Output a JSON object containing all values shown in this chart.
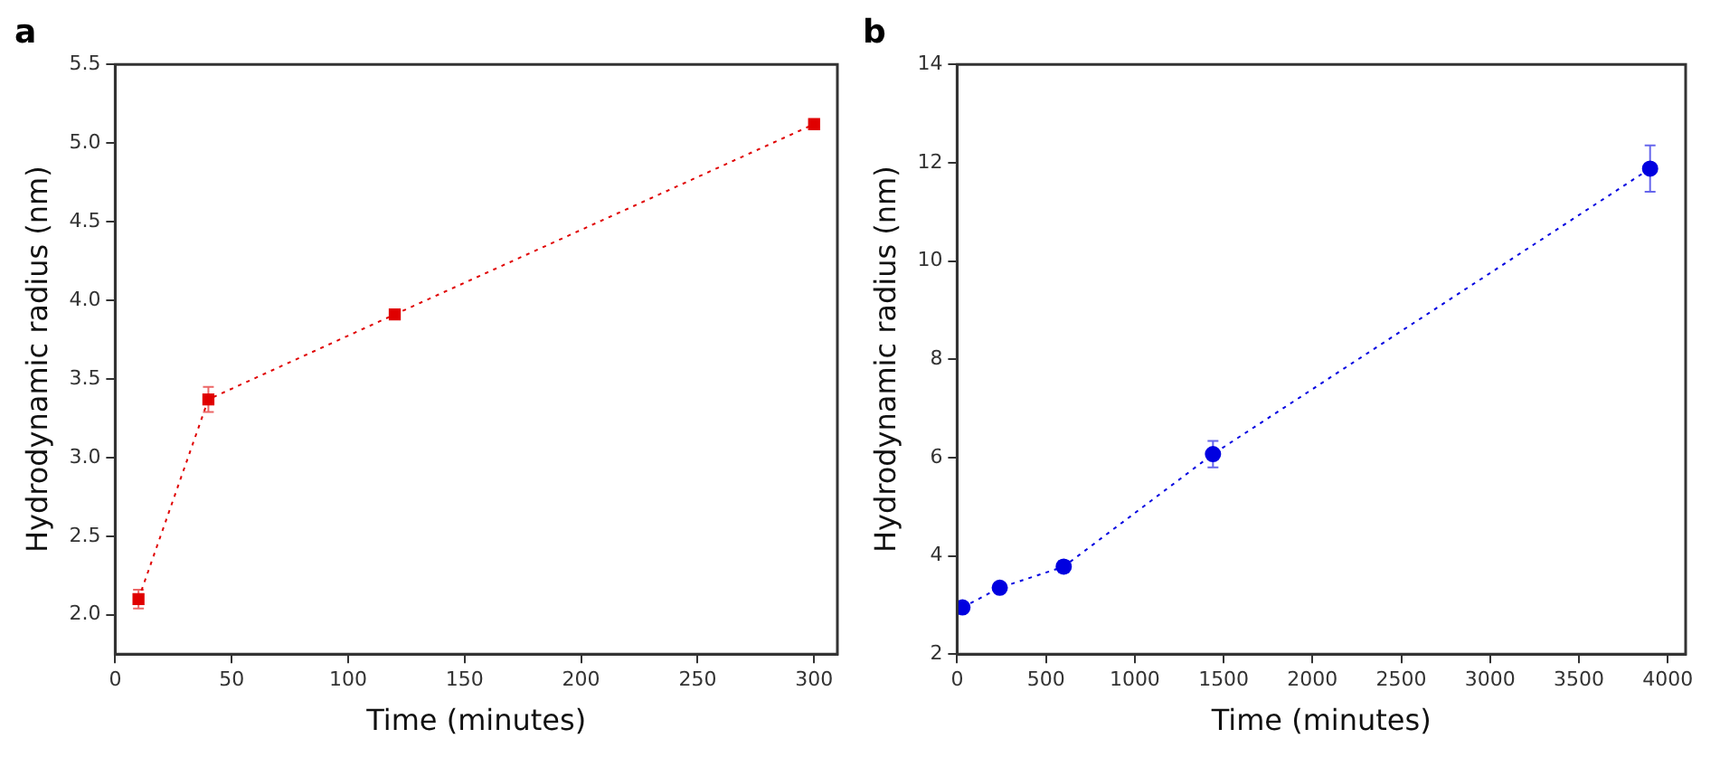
{
  "chart_data": [
    {
      "type": "line",
      "title": "a",
      "xlabel": "Time (minutes)",
      "ylabel": "Hydrodynamic radius (nm)",
      "x": [
        10,
        40,
        120,
        300
      ],
      "series": [
        {
          "color": "#e00000",
          "values": [
            2.1,
            3.37,
            3.91,
            5.12
          ],
          "errors": [
            0.06,
            0.08,
            0.02,
            0.02
          ]
        }
      ],
      "xlim": [
        0,
        310
      ],
      "xticks": [
        0,
        50,
        100,
        150,
        200,
        250,
        300
      ],
      "ylim": [
        1.75,
        5.5
      ],
      "yticks": [
        {
          "value": 2,
          "label": "2.0"
        },
        2.5,
        {
          "value": 3,
          "label": "3.0"
        },
        3.5,
        {
          "value": 4,
          "label": "4.0"
        },
        4.5,
        {
          "value": 5,
          "label": "5.0"
        },
        5.5
      ],
      "grid": false,
      "legend": false,
      "marker": "square",
      "line_style": "dotted"
    },
    {
      "type": "line",
      "title": "b",
      "xlabel": "Time (minutes)",
      "ylabel": "Hydrodynamic radius (nm)",
      "x": [
        30,
        240,
        600,
        1440,
        3900
      ],
      "series": [
        {
          "color": "#0000e0",
          "values": [
            2.95,
            3.35,
            3.78,
            6.07,
            11.88
          ],
          "errors": [
            0.05,
            0.05,
            0.12,
            0.27,
            0.47
          ]
        }
      ],
      "xlim": [
        0,
        4100
      ],
      "xticks": [
        0,
        500,
        1000,
        1500,
        2000,
        2500,
        3000,
        3500,
        4000
      ],
      "ylim": [
        2,
        14
      ],
      "yticks": [
        2,
        4,
        6,
        8,
        10,
        12,
        14
      ],
      "grid": false,
      "legend": false,
      "marker": "circle",
      "line_style": "dotted"
    }
  ]
}
